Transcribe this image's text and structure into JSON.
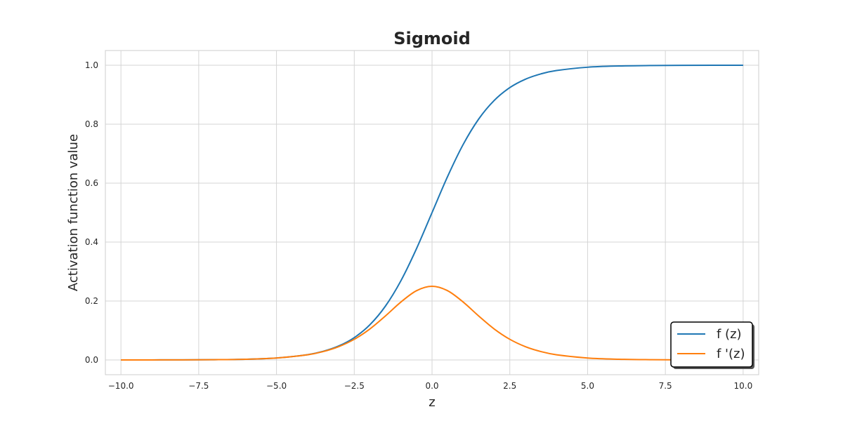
{
  "chart_data": {
    "type": "line",
    "title": "Sigmoid",
    "xlabel": "z",
    "ylabel": "Activation function value",
    "xlim": [
      -10.5,
      10.5
    ],
    "ylim": [
      -0.05,
      1.05
    ],
    "xticks": [
      -10.0,
      -7.5,
      -5.0,
      -2.5,
      0.0,
      2.5,
      5.0,
      7.5,
      10.0
    ],
    "xtick_labels": [
      "−10.0",
      "−7.5",
      "−5.0",
      "−2.5",
      "0.0",
      "2.5",
      "5.0",
      "7.5",
      "10.0"
    ],
    "yticks": [
      0.0,
      0.2,
      0.4,
      0.6,
      0.8,
      1.0
    ],
    "ytick_labels": [
      "0.0",
      "0.2",
      "0.4",
      "0.6",
      "0.8",
      "1.0"
    ],
    "grid": true,
    "legend_position": "lower-right",
    "x": [
      -10,
      -9,
      -8,
      -7,
      -6,
      -5,
      -4,
      -3.5,
      -3,
      -2.5,
      -2,
      -1.5,
      -1,
      -0.5,
      0,
      0.5,
      1,
      1.5,
      2,
      2.5,
      3,
      3.5,
      4,
      5,
      6,
      7,
      8,
      9,
      10
    ],
    "series": [
      {
        "name": "f (z)",
        "color": "#1f77b4",
        "values": [
          4.54e-05,
          0.0001234,
          0.0003354,
          0.000911,
          0.002473,
          0.006693,
          0.017986,
          0.029312,
          0.047426,
          0.075858,
          0.119203,
          0.182426,
          0.268941,
          0.377541,
          0.5,
          0.622459,
          0.731059,
          0.817574,
          0.880797,
          0.924142,
          0.952574,
          0.970688,
          0.982014,
          0.993307,
          0.997527,
          0.999089,
          0.999665,
          0.999877,
          0.999955
        ]
      },
      {
        "name": "f '(z)",
        "color": "#ff7f0e",
        "values": [
          4.54e-05,
          0.0001234,
          0.0003353,
          0.00091,
          0.002467,
          0.006648,
          0.017663,
          0.028453,
          0.045177,
          0.070104,
          0.104994,
          0.149146,
          0.196612,
          0.235004,
          0.25,
          0.235004,
          0.196612,
          0.149146,
          0.104994,
          0.070104,
          0.045177,
          0.028453,
          0.017663,
          0.006648,
          0.002467,
          0.00091,
          0.0003353,
          0.0001234,
          4.54e-05
        ]
      }
    ]
  }
}
